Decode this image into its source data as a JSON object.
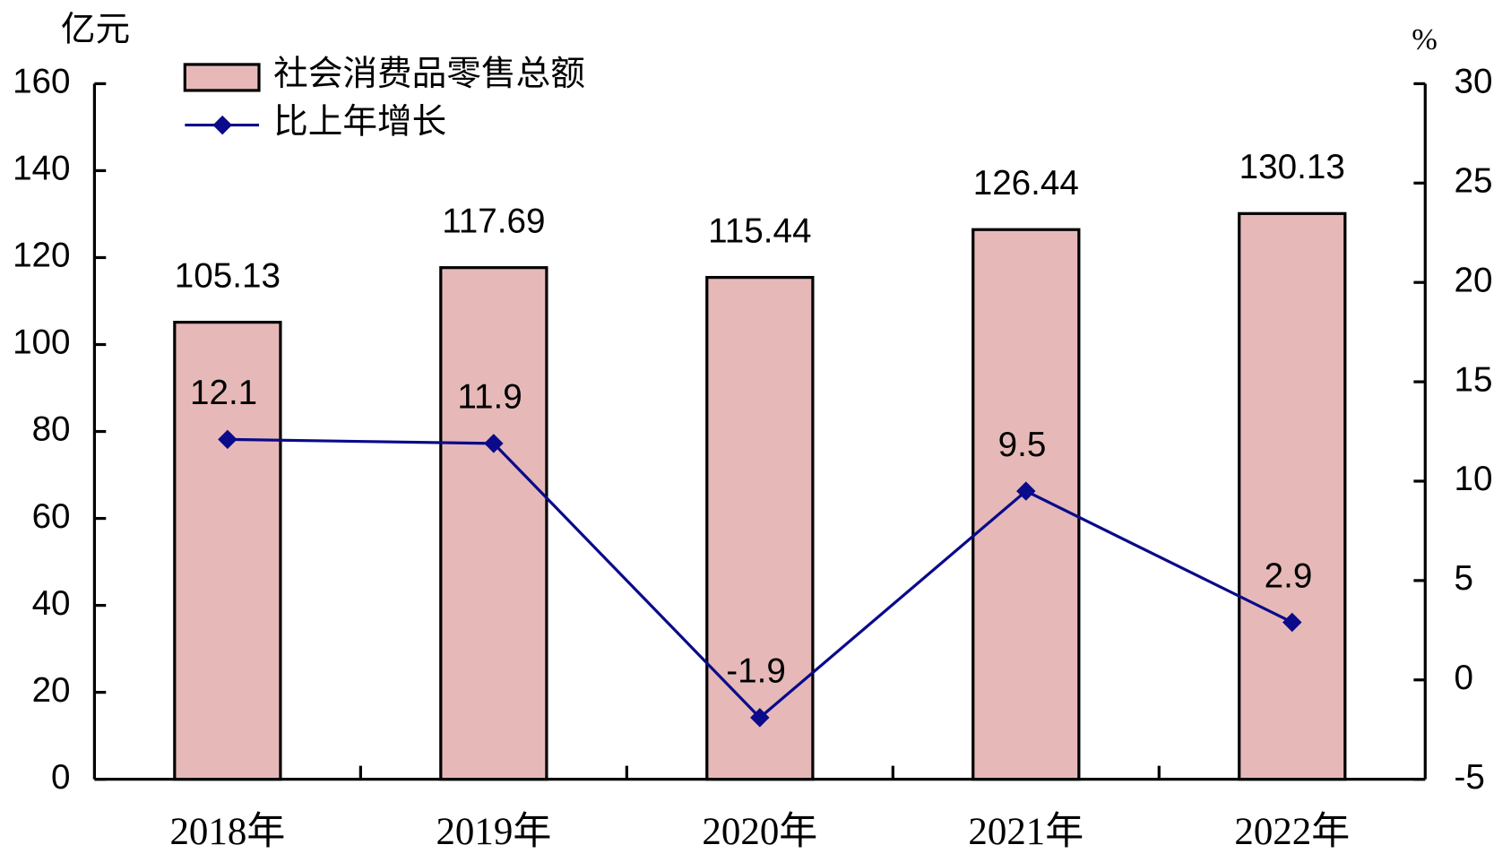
{
  "chart_data": {
    "type": "bar",
    "y_label": "亿元",
    "y2_label": "%",
    "categories": [
      "2018年",
      "2019年",
      "2020年",
      "2021年",
      "2022年"
    ],
    "series": [
      {
        "name": "社会消费品零售总额",
        "type": "bar",
        "color": "#e6b9b8",
        "values": [
          105.13,
          117.69,
          115.44,
          126.44,
          130.13
        ]
      },
      {
        "name": "比上年增长",
        "type": "line",
        "color": "#0a0a8a",
        "axis": "y2",
        "values": [
          12.1,
          11.9,
          -1.9,
          9.5,
          2.9
        ]
      }
    ],
    "ylim": [
      0,
      160
    ],
    "yticks": [
      0,
      20,
      40,
      60,
      80,
      100,
      120,
      140,
      160
    ],
    "y2lim": [
      -5,
      30
    ],
    "y2ticks": [
      -5,
      0,
      5,
      10,
      15,
      20,
      25,
      30
    ],
    "legend": "top-left"
  }
}
